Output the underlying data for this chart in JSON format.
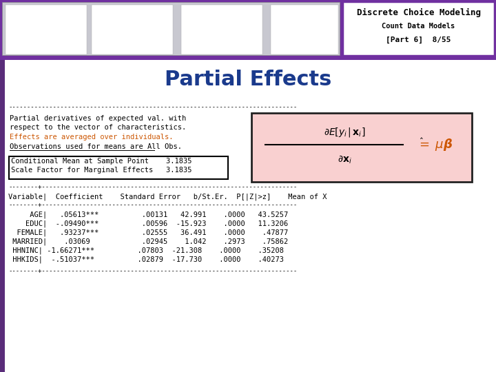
{
  "title": "Partial Effects",
  "title_color": "#1a3a8c",
  "title_fontsize": 22,
  "header_bg_color": "#7030a0",
  "header_text1": "Discrete Choice Modeling",
  "header_text2": "Count Data Models",
  "header_text3": "[Part 6]  8/55",
  "header_box_bg": "#ffffff",
  "body_bg": "#ffffff",
  "left_stripe_color": "#5a2d7a",
  "text_lines": [
    "Partial derivatives of expected val. with",
    "respect to the vector of characteristics.",
    "Effects are averaged over individuals.",
    "Observations used for means are All Obs."
  ],
  "orange_line_idx": 2,
  "orange_color": "#cc5500",
  "underline_line_idx": 3,
  "box_lines": [
    "Conditional Mean at Sample Point    3.1835",
    "Scale Factor for Marginal Effects   3.1835"
  ],
  "col_header": "Variable|  Coefficient    Standard Error   b/St.Er.  P[|Z|>z]    Mean of X",
  "rows": [
    "     AGE|   .05613***          .00131   42.991    .0000   43.5257",
    "    EDUC|  -.09490***          .00596  -15.923    .0000   11.3206",
    "  FEMALE|   .93237***          .02555   36.491    .0000    .47877",
    " MARRIED|    .03069            .02945    1.042    .2973    .75862",
    " HHNINC| -1.66271***          .07803  -21.308    .0000    .35208",
    " HHKIDS|  -.51037***          .02879  -17.730    .0000    .40273"
  ],
  "formula_box_bg": "#f9d0d0",
  "formula_box_border": "#222222",
  "header_charts_bg": "#d0d0d8"
}
